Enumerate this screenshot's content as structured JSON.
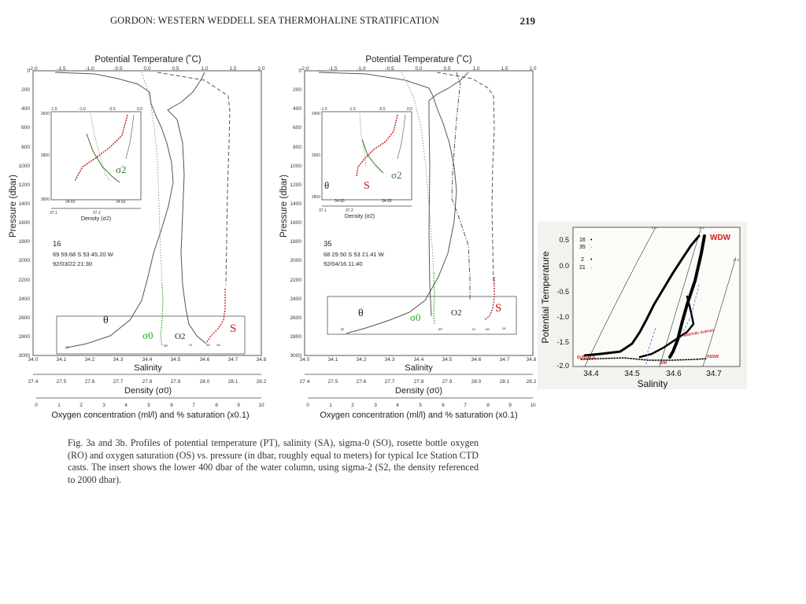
{
  "header": {
    "title": "GORDON:  WESTERN WEDDELL SEA THERMOHALINE STRATIFICATION",
    "page": "219"
  },
  "caption": "Fig. 3a and 3b.  Profiles of potential temperature (PT), salinity  (SA), sigma-0  (SO), rosette bottle oxygen (RO) and oxygen saturation (OS) vs. pressure (in dbar, roughly equal to meters) for typical Ice Station CTD casts.  The insert shows the lower 400 dbar of the water column, using sigma-2 (S2, the density referenced to 2000 dbar).",
  "profile_axes": {
    "top_label": "Potential Temperature (˚C)",
    "top_ticks": [
      "-2.0",
      "-1.5",
      "-1.0",
      "-0.5",
      "0.0",
      "0.5",
      "1.0",
      "1.5",
      "2.0"
    ],
    "y_label": "Pressure (dbar)",
    "y_ticks": [
      "0",
      "200",
      "400",
      "600",
      "800",
      "1000",
      "1200",
      "1400",
      "1600",
      "1800",
      "2000",
      "2200",
      "2400",
      "2600",
      "2800",
      "3000"
    ],
    "salinity_label": "Salinity",
    "salinity_ticks": [
      "34.0",
      "34.1",
      "34.2",
      "34.3",
      "34.4",
      "34.5",
      "34.6",
      "34.7",
      "34.8"
    ],
    "density_label": "Density (σ0)",
    "density_ticks": [
      "27.4",
      "27.5",
      "27.6",
      "27.7",
      "27.8",
      "27.9",
      "28.0",
      "28.1",
      "28.2"
    ],
    "oxygen_label": "Oxygen concentration (ml/l) and % saturation (x0.1)",
    "oxygen_ticks": [
      "0",
      "1",
      "2",
      "3",
      "4",
      "5",
      "6",
      "7",
      "8",
      "9",
      "10"
    ]
  },
  "inset_axes": {
    "top_ticks": [
      "-1.5",
      "-1.0",
      "-0.5",
      "0.0"
    ],
    "y_ticks": [
      "2600",
      "2800",
      "3000"
    ],
    "y_ticks_b": [
      "2400",
      "2600",
      "2800"
    ],
    "x_ticks_sal": [
      "34.60",
      "34.65"
    ],
    "x_ticks_den": [
      "37.1",
      "37.2"
    ],
    "x_label": "Density (σ2)"
  },
  "panel_a": {
    "station": "16",
    "position": "69 59.68 S   53 45.20 W",
    "datetime": "92/03/22   21:30",
    "labels": {
      "theta": "θ",
      "sigma0": "σ0",
      "o2": "O2",
      "s": "S",
      "sigma2": "σ2"
    },
    "tiny": {
      "so": "s0",
      "ro": "ro",
      "sa": "sa",
      "os": "os",
      "pt": "pt"
    }
  },
  "panel_b": {
    "station": "35",
    "position": "68 29.50 S   53 21.41 W",
    "datetime": "92/04/16   11:40",
    "labels": {
      "theta": "θ",
      "sigma0": "σ0",
      "o2": "O2",
      "s": "S",
      "sigma2": "σ2",
      "theta_inset": "θ",
      "s_inset": "S"
    },
    "tiny": {
      "so": "s0",
      "ro": "ro",
      "sa": "sa",
      "os": "os",
      "pt": "pt"
    }
  },
  "ts_diagram": {
    "x_label": "Salinity",
    "y_label": "Potential Temperature",
    "x_ticks": [
      "34.4",
      "34.5",
      "34.6",
      "34.7"
    ],
    "y_ticks": [
      "0.5",
      "0.0",
      "-0.5",
      "-1.0",
      "-1.5",
      "-2.0"
    ],
    "legend": [
      {
        "id": "16",
        "marker": "•"
      },
      {
        "id": "35",
        "marker": "·"
      },
      {
        "id": "2",
        "marker": "•"
      },
      {
        "id": "21",
        "marker": "·"
      }
    ],
    "isopycnals": [
      "27.7",
      "27.8",
      "27.9"
    ],
    "annotations": {
      "wdw": "WDW",
      "shelf": "SURFACE",
      "isw": "ISW",
      "hssw": "HSSW",
      "benthic": "BENTHIC SURVAY"
    },
    "colors": {
      "red_label": "#d42020",
      "blue_dash": "#3a78d8"
    }
  },
  "colors": {
    "curve": "#555555",
    "green": "#1ea81e",
    "red": "#c01818",
    "dkgreen": "#2c7a2c"
  }
}
